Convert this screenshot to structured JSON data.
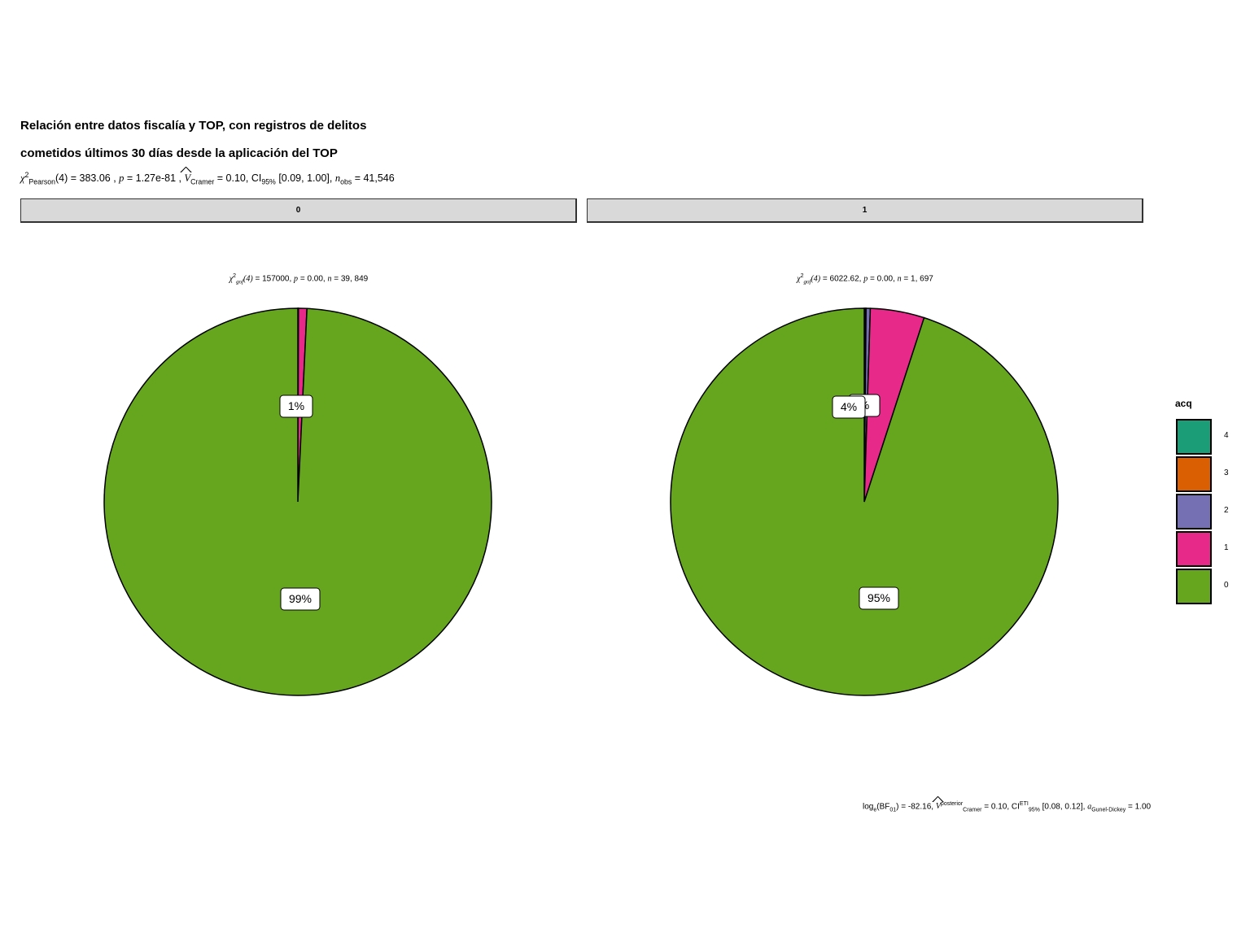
{
  "title_line1": "Relación entre datos fiscalía y TOP, con registros de delitos",
  "title_line2": "cometidos últimos 30 días desde la aplicación del TOP",
  "subtitle": {
    "chi_label": "χ",
    "chi_sup": "2",
    "chi_sub": "Pearson",
    "df": "(4)",
    "chi_value": "= 383.06 ,",
    "p_label": "p",
    "p_value": "= 1.27e-81 ,",
    "v_label": "V",
    "v_sub": "Cramer",
    "v_value": "= 0.10, CI",
    "ci_sub": "95%",
    "ci_value": "[0.09, 1.00],",
    "n_label": "n",
    "n_sub": "obs",
    "n_value": "= 41,546"
  },
  "facets": [
    {
      "strip_label": "0",
      "stats": {
        "chi_sub": "gof",
        "df": "(4)",
        "chi_value": "= 157000,",
        "p_value": "= 0.00,",
        "n_value": "= 39, 849"
      },
      "labels": [
        "99%",
        "1%"
      ]
    },
    {
      "strip_label": "1",
      "stats": {
        "chi_sub": "gof",
        "df": "(4)",
        "chi_value": "= 6022.62,",
        "p_value": "= 0.00,",
        "n_value": "= 1, 697"
      },
      "labels": [
        "95%",
        "4%",
        "%"
      ]
    }
  ],
  "caption": {
    "log_label": "log",
    "log_sub": "e",
    "bf": "(BF",
    "bf_sub": "01",
    "bf_value": ") = -82.16,",
    "v_sup": "posterior",
    "v_sub": "Cramer",
    "v_value": "= 0.10, CI",
    "ci_sup": "ETI",
    "ci_sub": "95%",
    "ci_value": "[0.08, 0.12],",
    "a_label": "a",
    "a_sub": "Gunel-Dickey",
    "a_value": "= 1.00"
  },
  "legend": {
    "title": "acq",
    "items": [
      {
        "label": "4",
        "color": "#1b9e77"
      },
      {
        "label": "3",
        "color": "#d95f02"
      },
      {
        "label": "2",
        "color": "#7570b3"
      },
      {
        "label": "1",
        "color": "#e7298a"
      },
      {
        "label": "0",
        "color": "#66a61e"
      }
    ]
  },
  "chart_data": {
    "type": "pie",
    "facet_variable_values": [
      "0",
      "1"
    ],
    "categories": [
      "4",
      "3",
      "2",
      "1",
      "0"
    ],
    "series": [
      {
        "name": "0",
        "values": [
          0.0,
          0.0,
          0.05,
          0.7,
          99.25
        ]
      },
      {
        "name": "1",
        "values": [
          0.1,
          0.05,
          0.35,
          4.5,
          95.0
        ]
      }
    ],
    "legend_title": "acq",
    "legend_position": "right"
  }
}
